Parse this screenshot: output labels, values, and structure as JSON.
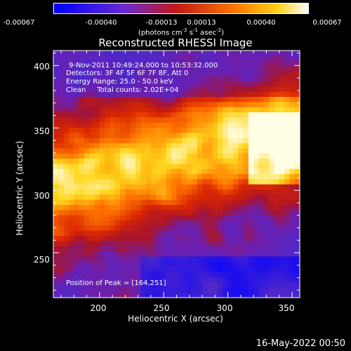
{
  "colorbar": {
    "tick_labels": [
      "-0.00067",
      "-0.00040",
      "-0.00013",
      "0.00013",
      "0.00040",
      "0.00067"
    ],
    "unit_label": "(photons cm",
    "unit_parts": [
      "(photons cm",
      "-2",
      " s",
      "-1",
      " asec",
      "-2",
      ")"
    ]
  },
  "chart_data": {
    "type": "heatmap",
    "title": "Reconstructed RHESSI Image",
    "xlabel": "Heliocentric X (arcsec)",
    "ylabel": "Heliocentric Y (arcsec)",
    "xlim": [
      164,
      356
    ],
    "ylim": [
      214,
      412
    ],
    "x_ticks": [
      200,
      250,
      300,
      350
    ],
    "y_ticks": [
      250,
      300,
      350,
      400
    ],
    "color_range": [
      -0.00067,
      0.00067
    ],
    "colors": {
      "low": "#0000ff",
      "mid_low": "#6a2bd0",
      "mid": "#c01818",
      "mid_high": "#ff7a00",
      "high": "#ffffff"
    },
    "annotations": [
      "9-Nov-2011 10:49:24.000 to 10:53:32.000",
      "Detectors: 3F 4F 5F 6F 7F 8F, Att 0",
      "Energy Range: 25.0 - 50.0 keV",
      "Clean     Total counts: 2.02E+04"
    ],
    "peak_label": "Position of Peak = [164,251]",
    "peak": [
      164,
      251
    ]
  },
  "timestamp": "16-May-2022 00:50"
}
